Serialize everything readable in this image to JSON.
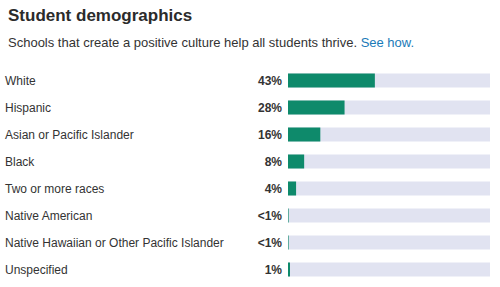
{
  "chart_data": {
    "type": "bar",
    "orientation": "horizontal",
    "title": "Student demographics",
    "subtitle": "Schools that create a positive culture help all students thrive.",
    "subtitle_link": "See how.",
    "categories": [
      "White",
      "Hispanic",
      "Asian or Pacific Islander",
      "Black",
      "Two or more races",
      "Native American",
      "Native Hawaiian or Other Pacific Islander",
      "Unspecified"
    ],
    "values": [
      43,
      28,
      16,
      8,
      4,
      0.3,
      0.3,
      1
    ],
    "value_labels": [
      "43%",
      "28%",
      "16%",
      "8%",
      "4%",
      "<1%",
      "<1%",
      "1%"
    ],
    "color": "#0e8a6b",
    "xlim": [
      0,
      100
    ],
    "data_labels": true,
    "tick_labels": "y",
    "grid": false
  }
}
